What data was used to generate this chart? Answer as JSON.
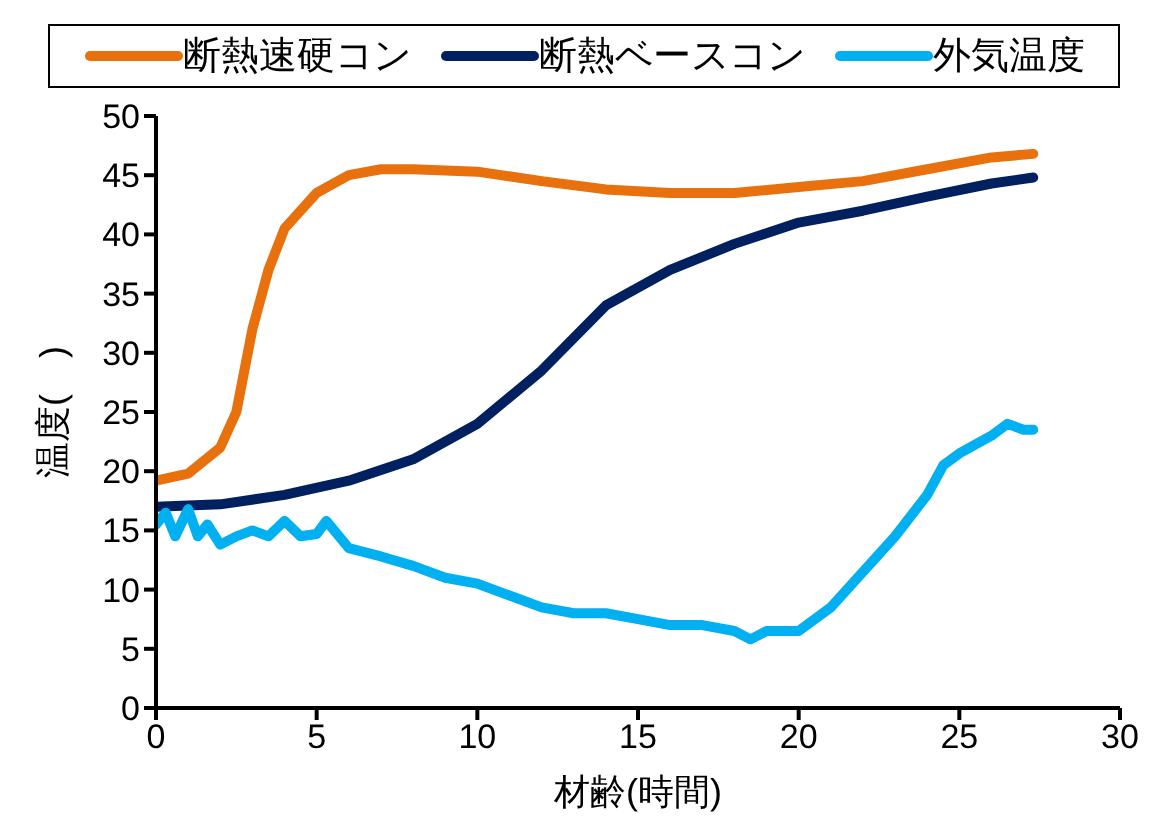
{
  "chart_data": {
    "type": "line",
    "xlabel": "材齢(時間)",
    "ylabel": "温度(　)",
    "xlim": [
      0,
      30
    ],
    "xticks": [
      0,
      5,
      10,
      15,
      20,
      25,
      30
    ],
    "ylim": [
      0,
      50
    ],
    "yticks": [
      0,
      5,
      10,
      15,
      20,
      25,
      30,
      35,
      40,
      45,
      50
    ],
    "grid": false,
    "legend": "top",
    "marker": "none",
    "line_style": "solid",
    "series": [
      {
        "name": "断熱速硬コン",
        "color": "#e8710e",
        "x": [
          0,
          1,
          2,
          2.5,
          3,
          3.5,
          4,
          5,
          6,
          7,
          8,
          10,
          12,
          14,
          16,
          18,
          20,
          22,
          24,
          26,
          27.3
        ],
        "values": [
          19.2,
          19.8,
          22,
          25,
          32,
          37,
          40.5,
          43.5,
          45,
          45.5,
          45.5,
          45.3,
          44.5,
          43.8,
          43.5,
          43.5,
          44,
          44.5,
          45.5,
          46.5,
          46.8
        ]
      },
      {
        "name": "断熱ベースコン",
        "color": "#002060",
        "x": [
          0,
          2,
          4,
          6,
          8,
          10,
          12,
          14,
          16,
          18,
          20,
          22,
          24,
          26,
          27.3
        ],
        "values": [
          17,
          17.2,
          18,
          19.2,
          21,
          24,
          28.5,
          34,
          37,
          39.2,
          41,
          42,
          43.2,
          44.3,
          44.8
        ]
      },
      {
        "name": "外気温度",
        "color": "#00b0f0",
        "x": [
          0,
          0.3,
          0.6,
          1,
          1.3,
          1.6,
          2,
          2.5,
          3,
          3.5,
          4,
          4.5,
          5,
          5.3,
          6,
          7,
          8,
          9,
          10,
          11,
          12,
          13,
          14,
          15,
          16,
          17,
          18,
          18.5,
          19,
          19.5,
          20,
          21,
          22,
          23,
          24,
          24.5,
          25,
          26,
          26.5,
          27,
          27.3
        ],
        "values": [
          15.5,
          16.5,
          14.5,
          16.8,
          14.5,
          15.5,
          13.8,
          14.5,
          15,
          14.5,
          15.8,
          14.5,
          14.7,
          15.8,
          13.5,
          12.8,
          12,
          11,
          10.5,
          9.5,
          8.5,
          8,
          8,
          7.5,
          7,
          7,
          6.5,
          5.8,
          6.5,
          6.5,
          6.5,
          8.5,
          11.5,
          14.5,
          18,
          20.5,
          21.5,
          23,
          24,
          23.5,
          23.5
        ]
      }
    ]
  }
}
